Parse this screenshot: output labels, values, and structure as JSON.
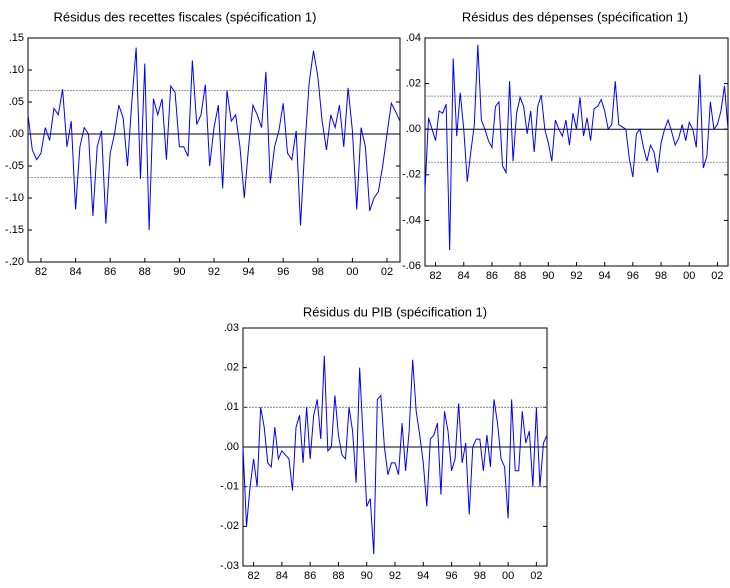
{
  "chart_data": [
    {
      "type": "line",
      "title": "Résidus des recettes fiscales (spécification 1)",
      "color": "#0000ff",
      "x": [
        1981.25,
        1981.5,
        1981.75,
        1982,
        1982.25,
        1982.5,
        1982.75,
        1983,
        1983.25,
        1983.5,
        1983.75,
        1984,
        1984.25,
        1984.5,
        1984.75,
        1985,
        1985.25,
        1985.5,
        1985.75,
        1986,
        1986.25,
        1986.5,
        1986.75,
        1987,
        1987.25,
        1987.5,
        1987.75,
        1988,
        1988.25,
        1988.5,
        1988.75,
        1989,
        1989.25,
        1989.5,
        1989.75,
        1990,
        1990.25,
        1990.5,
        1990.75,
        1991,
        1991.25,
        1991.5,
        1991.75,
        1992,
        1992.25,
        1992.5,
        1992.75,
        1993,
        1993.25,
        1993.5,
        1993.75,
        1994,
        1994.25,
        1994.5,
        1994.75,
        1995,
        1995.25,
        1995.5,
        1995.75,
        1996,
        1996.25,
        1996.5,
        1996.75,
        1997,
        1997.25,
        1997.5,
        1997.75,
        1998,
        1998.25,
        1998.5,
        1998.75,
        1999,
        1999.25,
        1999.5,
        1999.75,
        2000,
        2000.25,
        2000.5,
        2000.75,
        2001,
        2001.25,
        2001.5,
        2001.75,
        2002,
        2002.25,
        2002.5,
        2002.75
      ],
      "values": [
        0.03,
        -0.025,
        -0.04,
        -0.03,
        0.01,
        -0.01,
        0.04,
        0.03,
        0.07,
        -0.02,
        0.02,
        -0.118,
        -0.02,
        0.01,
        0.0,
        -0.128,
        -0.02,
        0.005,
        -0.14,
        -0.03,
        0.0,
        0.045,
        0.025,
        -0.05,
        0.05,
        0.135,
        -0.07,
        0.11,
        -0.15,
        0.055,
        0.03,
        0.055,
        -0.04,
        0.075,
        0.065,
        -0.02,
        -0.02,
        -0.035,
        0.115,
        0.015,
        0.03,
        0.077,
        -0.05,
        0.01,
        0.045,
        -0.085,
        0.068,
        0.02,
        0.03,
        -0.02,
        -0.1,
        -0.02,
        0.045,
        0.03,
        0.01,
        0.097,
        -0.077,
        -0.02,
        0.005,
        0.048,
        -0.03,
        -0.04,
        0.005,
        -0.143,
        -0.02,
        0.08,
        0.13,
        0.09,
        0.02,
        -0.025,
        0.03,
        0.01,
        0.045,
        -0.02,
        0.072,
        0.005,
        -0.118,
        0.01,
        -0.02,
        -0.12,
        -0.1,
        -0.09,
        -0.05,
        0.0,
        0.048,
        0.035,
        0.02
      ],
      "bands": [
        0.068,
        -0.068
      ],
      "zero_line": true,
      "xlim": [
        1981.25,
        2002.75
      ],
      "xticks": [
        {
          "value": 1982,
          "label": "82"
        },
        {
          "value": 1984,
          "label": "84"
        },
        {
          "value": 1986,
          "label": "86"
        },
        {
          "value": 1988,
          "label": "88"
        },
        {
          "value": 1990,
          "label": "90"
        },
        {
          "value": 1992,
          "label": "92"
        },
        {
          "value": 1994,
          "label": "94"
        },
        {
          "value": 1996,
          "label": "96"
        },
        {
          "value": 1998,
          "label": "98"
        },
        {
          "value": 2000,
          "label": "00"
        },
        {
          "value": 2002,
          "label": "02"
        }
      ],
      "ylim": [
        -0.2,
        0.15
      ],
      "yticks": [
        {
          "value": 0.15,
          "label": ".15"
        },
        {
          "value": 0.1,
          "label": ".10"
        },
        {
          "value": 0.05,
          "label": ".05"
        },
        {
          "value": 0,
          "label": ".00"
        },
        {
          "value": -0.05,
          "label": "-.05"
        },
        {
          "value": -0.1,
          "label": "-.10"
        },
        {
          "value": -0.15,
          "label": "-.15"
        },
        {
          "value": -0.2,
          "label": "-.20"
        }
      ]
    },
    {
      "type": "line",
      "title": "Résidus des dépenses (spécification 1)",
      "color": "#0000ff",
      "x": [
        1981.25,
        1981.5,
        1981.75,
        1982,
        1982.25,
        1982.5,
        1982.75,
        1983,
        1983.25,
        1983.5,
        1983.75,
        1984,
        1984.25,
        1984.5,
        1984.75,
        1985,
        1985.25,
        1985.5,
        1985.75,
        1986,
        1986.25,
        1986.5,
        1986.75,
        1987,
        1987.25,
        1987.5,
        1987.75,
        1988,
        1988.25,
        1988.5,
        1988.75,
        1989,
        1989.25,
        1989.5,
        1989.75,
        1990,
        1990.25,
        1990.5,
        1990.75,
        1991,
        1991.25,
        1991.5,
        1991.75,
        1992,
        1992.25,
        1992.5,
        1992.75,
        1993,
        1993.25,
        1993.5,
        1993.75,
        1994,
        1994.25,
        1994.5,
        1994.75,
        1995,
        1995.25,
        1995.5,
        1995.75,
        1996,
        1996.25,
        1996.5,
        1996.75,
        1997,
        1997.25,
        1997.5,
        1997.75,
        1998,
        1998.25,
        1998.5,
        1998.75,
        1999,
        1999.25,
        1999.5,
        1999.75,
        2000,
        2000.25,
        2000.5,
        2000.75,
        2001,
        2001.25,
        2001.5,
        2001.75,
        2002,
        2002.25,
        2002.5,
        2002.75
      ],
      "values": [
        -0.027,
        0.005,
        0.0,
        -0.005,
        0.008,
        0.007,
        0.011,
        -0.053,
        0.031,
        -0.003,
        0.016,
        0.0,
        -0.023,
        -0.01,
        0.002,
        0.037,
        0.004,
        0.0,
        -0.005,
        -0.008,
        0.01,
        0.012,
        -0.016,
        -0.019,
        0.021,
        -0.014,
        0.007,
        0.014,
        0.01,
        -0.002,
        0.008,
        -0.01,
        0.01,
        0.015,
        0.0,
        -0.006,
        -0.014,
        0.004,
        0.0,
        -0.003,
        0.004,
        -0.007,
        0.007,
        0.0,
        0.014,
        -0.003,
        0.005,
        -0.005,
        0.009,
        0.01,
        0.013,
        0.008,
        0.0,
        0.002,
        0.021,
        0.002,
        0.001,
        0.0,
        -0.013,
        -0.021,
        -0.002,
        0.0,
        -0.008,
        -0.014,
        -0.007,
        -0.01,
        -0.019,
        -0.006,
        0.0,
        0.004,
        -0.001,
        -0.007,
        -0.004,
        0.002,
        -0.005,
        0.003,
        0.0,
        -0.008,
        0.024,
        -0.017,
        -0.012,
        0.012,
        0.0,
        0.002,
        0.008,
        0.019,
        0.0
      ],
      "bands": [
        0.0145,
        -0.0145
      ],
      "zero_line": true,
      "xlim": [
        1981.25,
        2002.75
      ],
      "xticks": [
        {
          "value": 1982,
          "label": "82"
        },
        {
          "value": 1984,
          "label": "84"
        },
        {
          "value": 1986,
          "label": "86"
        },
        {
          "value": 1988,
          "label": "88"
        },
        {
          "value": 1990,
          "label": "90"
        },
        {
          "value": 1992,
          "label": "92"
        },
        {
          "value": 1994,
          "label": "94"
        },
        {
          "value": 1996,
          "label": "96"
        },
        {
          "value": 1998,
          "label": "98"
        },
        {
          "value": 2000,
          "label": "00"
        },
        {
          "value": 2002,
          "label": "02"
        }
      ],
      "ylim": [
        -0.06,
        0.04
      ],
      "yticks": [
        {
          "value": 0.04,
          "label": ".04"
        },
        {
          "value": 0.02,
          "label": ".02"
        },
        {
          "value": 0,
          "label": ".00"
        },
        {
          "value": -0.02,
          "label": "-.02"
        },
        {
          "value": -0.04,
          "label": "-.04"
        },
        {
          "value": -0.06,
          "label": "-.06"
        }
      ]
    },
    {
      "type": "line",
      "title": "Résidus du PIB (spécification 1)",
      "color": "#0000ff",
      "x": [
        1981.25,
        1981.5,
        1981.75,
        1982,
        1982.25,
        1982.5,
        1982.75,
        1983,
        1983.25,
        1983.5,
        1983.75,
        1984,
        1984.25,
        1984.5,
        1984.75,
        1985,
        1985.25,
        1985.5,
        1985.75,
        1986,
        1986.25,
        1986.5,
        1986.75,
        1987,
        1987.25,
        1987.5,
        1987.75,
        1988,
        1988.25,
        1988.5,
        1988.75,
        1989,
        1989.25,
        1989.5,
        1989.75,
        1990,
        1990.25,
        1990.5,
        1990.75,
        1991,
        1991.25,
        1991.5,
        1991.75,
        1992,
        1992.25,
        1992.5,
        1992.75,
        1993,
        1993.25,
        1993.5,
        1993.75,
        1994,
        1994.25,
        1994.5,
        1994.75,
        1995,
        1995.25,
        1995.5,
        1995.75,
        1996,
        1996.25,
        1996.5,
        1996.75,
        1997,
        1997.25,
        1997.5,
        1997.75,
        1998,
        1998.25,
        1998.5,
        1998.75,
        1999,
        1999.25,
        1999.5,
        1999.75,
        2000,
        2000.25,
        2000.5,
        2000.75,
        2001,
        2001.25,
        2001.5,
        2001.75,
        2002,
        2002.25,
        2002.5,
        2002.75
      ],
      "values": [
        0.0,
        -0.02,
        -0.01,
        -0.003,
        -0.01,
        0.01,
        0.005,
        -0.004,
        -0.005,
        0.005,
        -0.003,
        -0.001,
        -0.002,
        -0.003,
        -0.011,
        0.005,
        0.008,
        -0.004,
        0.01,
        -0.003,
        0.008,
        0.012,
        0.002,
        0.023,
        -0.001,
        0.0,
        0.013,
        0.003,
        -0.002,
        -0.003,
        0.01,
        0.004,
        -0.009,
        0.02,
        0.002,
        -0.015,
        -0.013,
        -0.027,
        0.012,
        0.013,
        0.0,
        -0.007,
        -0.004,
        -0.004,
        -0.007,
        0.006,
        -0.006,
        0.004,
        0.022,
        0.009,
        0.003,
        -0.004,
        -0.015,
        0.002,
        0.003,
        0.006,
        -0.012,
        0.009,
        0.004,
        -0.006,
        -0.003,
        0.011,
        -0.004,
        0.001,
        -0.017,
        0.0,
        0.002,
        0.002,
        -0.006,
        0.003,
        -0.005,
        0.012,
        0.006,
        -0.003,
        -0.005,
        -0.018,
        0.012,
        -0.006,
        -0.006,
        0.009,
        0.001,
        0.004,
        -0.01,
        0.01,
        -0.01,
        0.001,
        0.003
      ],
      "bands": [
        0.01,
        -0.01
      ],
      "zero_line": true,
      "xlim": [
        1981.25,
        2002.75
      ],
      "xticks": [
        {
          "value": 1982,
          "label": "82"
        },
        {
          "value": 1984,
          "label": "84"
        },
        {
          "value": 1986,
          "label": "86"
        },
        {
          "value": 1988,
          "label": "88"
        },
        {
          "value": 1990,
          "label": "90"
        },
        {
          "value": 1992,
          "label": "92"
        },
        {
          "value": 1994,
          "label": "94"
        },
        {
          "value": 1996,
          "label": "96"
        },
        {
          "value": 1998,
          "label": "98"
        },
        {
          "value": 2000,
          "label": "00"
        },
        {
          "value": 2002,
          "label": "02"
        }
      ],
      "ylim": [
        -0.03,
        0.03
      ],
      "yticks": [
        {
          "value": 0.03,
          "label": ".03"
        },
        {
          "value": 0.02,
          "label": ".02"
        },
        {
          "value": 0.01,
          "label": ".01"
        },
        {
          "value": 0,
          "label": ".00"
        },
        {
          "value": -0.01,
          "label": "-.01"
        },
        {
          "value": -0.02,
          "label": "-.02"
        },
        {
          "value": -0.03,
          "label": "-.03"
        }
      ]
    }
  ]
}
